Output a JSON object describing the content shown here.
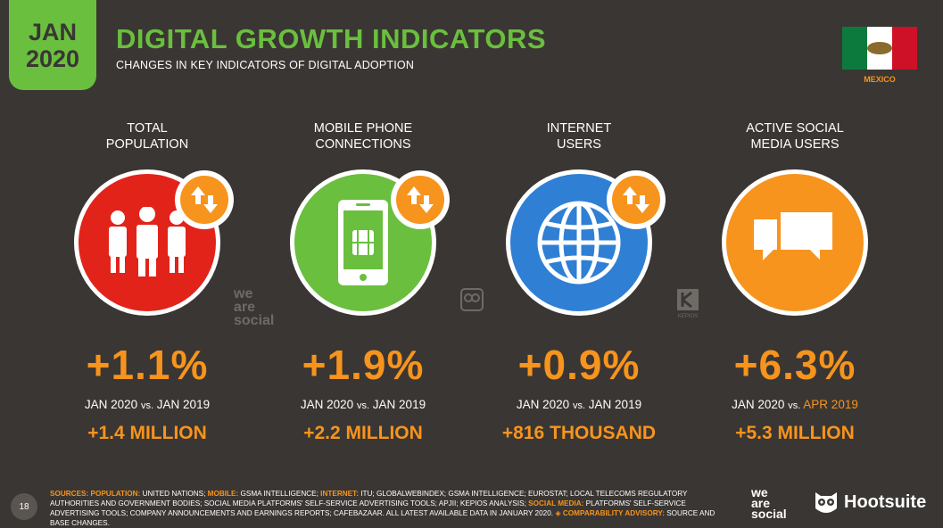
{
  "header": {
    "month": "JAN",
    "year": "2020",
    "title": "DIGITAL GROWTH INDICATORS",
    "subtitle": "CHANGES IN KEY INDICATORS OF DIGITAL ADOPTION",
    "country": "MEXICO"
  },
  "indicators": [
    {
      "label_line1": "TOTAL",
      "label_line2": "POPULATION",
      "icon": "people-icon",
      "color": "#e2231a",
      "change_pct": "+1.1%",
      "comparison_left": "JAN 2020",
      "comparison_vs": "vs.",
      "comparison_right": "JAN 2019",
      "change_abs": "+1.4 MILLION"
    },
    {
      "label_line1": "MOBILE PHONE",
      "label_line2": "CONNECTIONS",
      "icon": "mobile-phone-icon",
      "color": "#6abf3e",
      "change_pct": "+1.9%",
      "comparison_left": "JAN 2020",
      "comparison_vs": "vs.",
      "comparison_right": "JAN 2019",
      "change_abs": "+2.2 MILLION"
    },
    {
      "label_line1": "INTERNET",
      "label_line2": "USERS",
      "icon": "globe-icon",
      "color": "#2f7fd5",
      "change_pct": "+0.9%",
      "comparison_left": "JAN 2020",
      "comparison_vs": "vs.",
      "comparison_right": "JAN 2019",
      "change_abs": "+816 THOUSAND"
    },
    {
      "label_line1": "ACTIVE SOCIAL",
      "label_line2": "MEDIA USERS",
      "icon": "chat-bubbles-icon",
      "color": "#f7941d",
      "change_pct": "+6.3%",
      "comparison_left": "JAN 2020",
      "comparison_vs": "vs.",
      "comparison_right": "APR 2019",
      "change_abs": "+5.3 MILLION"
    }
  ],
  "watermarks": {
    "was_line1": "we",
    "was_line2": "are",
    "was_line3": "social",
    "kepios": "KEPIOS"
  },
  "footer": {
    "page_number": "18",
    "sources_key": "SOURCES:",
    "population_key": "POPULATION:",
    "population_text": "UNITED NATIONS;",
    "mobile_key": "MOBILE:",
    "mobile_text": "GSMA INTELLIGENCE;",
    "internet_key": "INTERNET:",
    "internet_text": "ITU; GLOBALWEBINDEX; GSMA INTELLIGENCE; EUROSTAT; LOCAL TELECOMS REGULATORY AUTHORITIES AND GOVERNMENT BODIES; SOCIAL MEDIA PLATFORMS' SELF-SERVICE ADVERTISING TOOLS; APJII; KEPIOS ANALYSIS;",
    "social_key": "SOCIAL MEDIA:",
    "social_text": "PLATFORMS' SELF-SERVICE ADVERTISING TOOLS; COMPANY ANNOUNCEMENTS AND EARNINGS REPORTS; CAFEBAZAAR. ALL LATEST AVAILABLE DATA IN JANUARY 2020.",
    "advisory_key": "◈ COMPARABILITY ADVISORY:",
    "advisory_text": "SOURCE AND BASE CHANGES.",
    "logo_was_1": "we",
    "logo_was_2": "are",
    "logo_was_3": "social",
    "logo_hootsuite": "Hootsuite"
  }
}
